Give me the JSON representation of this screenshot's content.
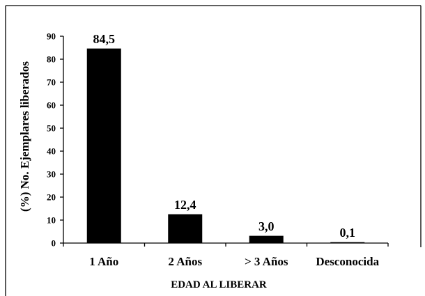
{
  "chart_data": {
    "type": "bar",
    "categories": [
      "1 Año",
      "2 Años",
      "> 3 Años",
      "Desconocida"
    ],
    "values": [
      84.5,
      12.4,
      3.0,
      0.1
    ],
    "data_labels": [
      "84,5",
      "12,4",
      "3,0",
      "0,1"
    ],
    "xlabel": "EDAD  AL  LIBERAR",
    "ylabel": "(%) No. Ejemplares liberados",
    "ylim": [
      0,
      90
    ],
    "yticks": [
      0,
      10,
      20,
      30,
      40,
      50,
      60,
      70,
      80,
      90
    ],
    "ytick_labels": [
      "0",
      "10",
      "20",
      "30",
      "40",
      "50",
      "60",
      "70",
      "80",
      "90"
    ],
    "grid": false,
    "bar_color": "#000000"
  }
}
